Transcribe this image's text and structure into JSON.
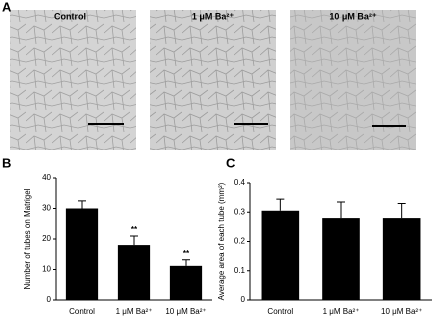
{
  "panels": {
    "a": "A",
    "b": "B",
    "c": "C"
  },
  "images": [
    {
      "caption": "Control"
    },
    {
      "caption": "1 μM Ba²⁺"
    },
    {
      "caption": "10 μM Ba²⁺"
    }
  ],
  "chart_data": [
    {
      "type": "bar",
      "ylabel": "Number of tubes on Matrigel",
      "categories": [
        "Control",
        "1 μM Ba²⁺",
        "10 μM Ba²⁺"
      ],
      "values": [
        30,
        18,
        11.2
      ],
      "errors": [
        2.5,
        3,
        2
      ],
      "annotations": [
        null,
        "**",
        "**"
      ],
      "color": "#000000",
      "ylim": [
        0,
        40
      ],
      "yticks": [
        0,
        10,
        20,
        30,
        40
      ]
    },
    {
      "type": "bar",
      "ylabel": "Average area of each tube (mm²)",
      "categories": [
        "Control",
        "1 μM Ba²⁺",
        "10 μM Ba²⁺"
      ],
      "values": [
        0.305,
        0.28,
        0.28
      ],
      "errors": [
        0.04,
        0.055,
        0.05
      ],
      "color": "#000000",
      "ylim": [
        0,
        0.4
      ],
      "yticks": [
        0,
        0.1,
        0.2,
        0.3,
        0.4
      ]
    }
  ]
}
